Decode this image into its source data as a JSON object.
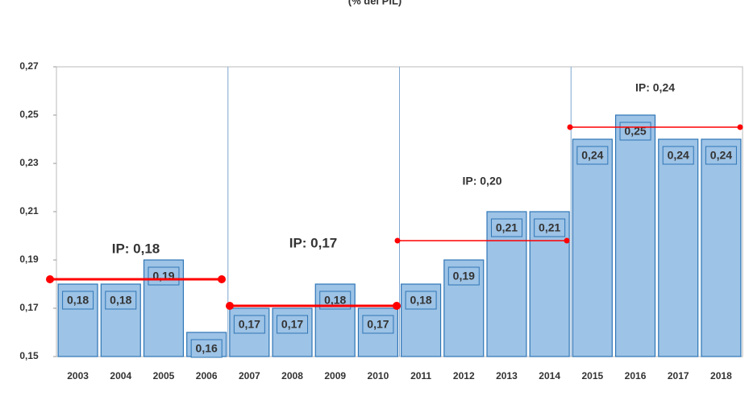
{
  "chart_data": {
    "type": "bar",
    "subtitle": "(% del PIL)",
    "categories": [
      "2003",
      "2004",
      "2005",
      "2006",
      "2007",
      "2008",
      "2009",
      "2010",
      "2011",
      "2012",
      "2013",
      "2014",
      "2015",
      "2016",
      "2017",
      "2018"
    ],
    "values": [
      0.18,
      0.18,
      0.19,
      0.16,
      0.17,
      0.17,
      0.18,
      0.17,
      0.18,
      0.19,
      0.21,
      0.21,
      0.24,
      0.25,
      0.24,
      0.24
    ],
    "value_labels": [
      "0,18",
      "0,18",
      "0,19",
      "0,16",
      "0,17",
      "0,17",
      "0,18",
      "0,17",
      "0,18",
      "0,19",
      "0,21",
      "0,21",
      "0,24",
      "0,25",
      "0,24",
      "0,24"
    ],
    "color": "#9dc3e6",
    "ylim": [
      0.15,
      0.27
    ],
    "yticks": [
      {
        "value": 0.15,
        "label": "0,15"
      },
      {
        "value": 0.17,
        "label": "0,17"
      },
      {
        "value": 0.19,
        "label": "0,19"
      },
      {
        "value": 0.21,
        "label": "0,21"
      },
      {
        "value": 0.23,
        "label": "0,23"
      },
      {
        "value": 0.25,
        "label": "0,25"
      },
      {
        "value": 0.27,
        "label": "0,27"
      }
    ],
    "periods": [
      {
        "label": "IP: 0,18",
        "value": 0.182,
        "start": 0,
        "end": 3
      },
      {
        "label": "IP: 0,17",
        "value": 0.171,
        "start": 4,
        "end": 7
      },
      {
        "label": "IP: 0,20",
        "value": 0.198,
        "start": 8,
        "end": 11
      },
      {
        "label": "IP: 0,24",
        "value": 0.245,
        "start": 12,
        "end": 15
      }
    ],
    "period_color": "#ff0000"
  }
}
